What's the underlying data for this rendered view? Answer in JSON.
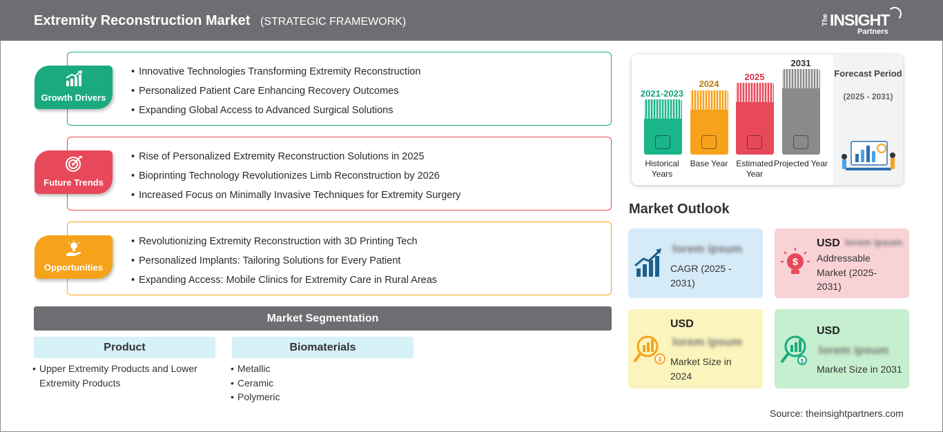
{
  "header": {
    "title": "Extremity Reconstruction Market",
    "subtitle": "(STRATEGIC FRAMEWORK)",
    "logo": {
      "the": "The",
      "insight": "INSIGHT",
      "partners": "Partners"
    }
  },
  "framework": [
    {
      "label": "Growth Drivers",
      "color": "#1aaa7e",
      "icon": "growth-chart-icon",
      "items": [
        "Innovative Technologies Transforming Extremity Reconstruction",
        "Personalized Patient Care Enhancing Recovery Outcomes",
        "Expanding Global Access to Advanced Surgical Solutions"
      ]
    },
    {
      "label": "Future Trends",
      "color": "#e8495a",
      "icon": "target-icon",
      "items": [
        "Rise of Personalized Extremity Reconstruction Solutions in 2025",
        "Bioprinting Technology Revolutionizes Limb Reconstruction by 2026",
        "Increased Focus on Minimally Invasive Techniques for Extremity Surgery"
      ]
    },
    {
      "label": "Opportunities",
      "color": "#f7a21b",
      "icon": "lightbulb-hand-icon",
      "items": [
        "Revolutionizing Extremity Reconstruction with 3D Printing Tech",
        "Personalized Implants: Tailoring Solutions for Every Patient",
        "Expanding Access: Mobile Clinics for Extremity Care in Rural Areas"
      ]
    }
  ],
  "segmentation": {
    "title": "Market Segmentation",
    "columns": [
      {
        "header": "Product",
        "items": [
          "Upper Extremity Products and Lower Extremity Products"
        ]
      },
      {
        "header": "Biomaterials",
        "items": [
          "Metallic",
          "Ceramic",
          "Polymeric"
        ]
      }
    ]
  },
  "timeline": {
    "bars": [
      {
        "year": "2021-2023",
        "caption": "Historical Years",
        "color": "#1bb58a",
        "year_color": "#16a27b",
        "icon": "history-icon"
      },
      {
        "year": "2024",
        "caption": "Base Year",
        "color": "#f7a21b",
        "year_color": "#b6790f",
        "icon": "calendar-icon"
      },
      {
        "year": "2025",
        "caption": "Estimated Year",
        "color": "#e8495a",
        "year_color": "#d63447",
        "icon": "gears-icon"
      },
      {
        "year": "2031",
        "caption": "Projected Year",
        "color": "#8a8a8a",
        "year_color": "#333333",
        "icon": "presentation-icon"
      }
    ],
    "forecast": {
      "title": "Forecast Period",
      "range": "(2025 - 2031)"
    }
  },
  "outlook": {
    "title": "Market Outlook",
    "cards": [
      {
        "name": "cagr",
        "usd": "",
        "blurred": "lorem ipsum",
        "text": "CAGR (2025 - 2031)",
        "bg": "#d5ebf8",
        "icon": "bar-growth-icon",
        "icon_color": "#1f5f8b"
      },
      {
        "name": "addressable",
        "usd": "USD",
        "blurred": "lorem ipsum",
        "text": "Addressable Market (2025-2031)",
        "bg": "#f9d2d6",
        "icon": "idea-dollar-icon",
        "icon_color": "#e8495a"
      },
      {
        "name": "size-2024",
        "usd": "USD",
        "blurred": "lorem ipsum",
        "text": "Market Size in 2024",
        "bg": "#fbf4bc",
        "icon": "magnifier-dollar-icon",
        "icon_color": "#f7a21b"
      },
      {
        "name": "size-2031",
        "usd": "USD",
        "blurred": "lorem ipsum",
        "text": "Market Size in 2031",
        "bg": "#c6efcf",
        "icon": "magnifier-growth-icon",
        "icon_color": "#1aaa7e"
      }
    ]
  },
  "source": "Source: theinsightpartners.com"
}
